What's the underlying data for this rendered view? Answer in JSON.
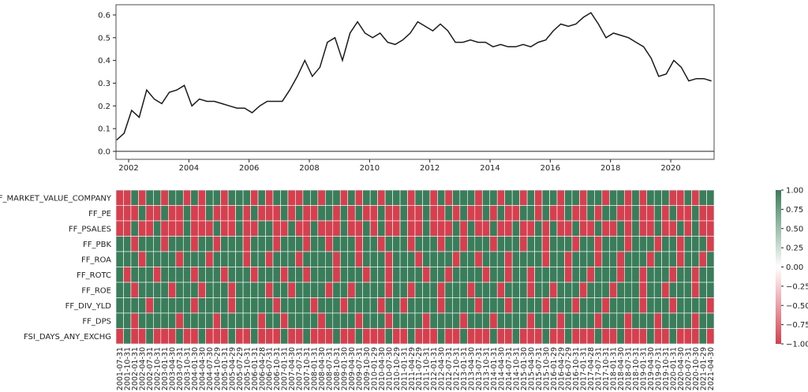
{
  "chart_data": [
    {
      "type": "line",
      "x": [
        2001.6,
        2001.85,
        2002.1,
        2002.35,
        2002.6,
        2002.85,
        2003.1,
        2003.35,
        2003.6,
        2003.85,
        2004.1,
        2004.35,
        2004.6,
        2004.85,
        2005.1,
        2005.35,
        2005.6,
        2005.85,
        2006.1,
        2006.35,
        2006.6,
        2006.85,
        2007.1,
        2007.35,
        2007.6,
        2007.85,
        2008.1,
        2008.35,
        2008.6,
        2008.85,
        2009.1,
        2009.35,
        2009.6,
        2009.85,
        2010.1,
        2010.35,
        2010.6,
        2010.85,
        2011.1,
        2011.35,
        2011.6,
        2011.85,
        2012.1,
        2012.35,
        2012.6,
        2012.85,
        2013.1,
        2013.35,
        2013.6,
        2013.85,
        2014.1,
        2014.35,
        2014.6,
        2014.85,
        2015.1,
        2015.35,
        2015.6,
        2015.85,
        2016.1,
        2016.35,
        2016.6,
        2016.85,
        2017.1,
        2017.35,
        2017.6,
        2017.85,
        2018.1,
        2018.35,
        2018.6,
        2018.85,
        2019.1,
        2019.35,
        2019.6,
        2019.85,
        2020.1,
        2020.35,
        2020.6,
        2020.85,
        2021.1,
        2021.35
      ],
      "values": [
        0.05,
        0.08,
        0.18,
        0.15,
        0.27,
        0.23,
        0.21,
        0.26,
        0.27,
        0.29,
        0.2,
        0.23,
        0.22,
        0.22,
        0.21,
        0.2,
        0.19,
        0.19,
        0.17,
        0.2,
        0.22,
        0.22,
        0.22,
        0.27,
        0.33,
        0.4,
        0.33,
        0.37,
        0.48,
        0.5,
        0.4,
        0.52,
        0.57,
        0.52,
        0.5,
        0.52,
        0.48,
        0.47,
        0.49,
        0.52,
        0.57,
        0.55,
        0.53,
        0.56,
        0.53,
        0.48,
        0.48,
        0.49,
        0.48,
        0.48,
        0.46,
        0.47,
        0.46,
        0.46,
        0.47,
        0.46,
        0.48,
        0.49,
        0.53,
        0.56,
        0.55,
        0.56,
        0.59,
        0.61,
        0.56,
        0.5,
        0.52,
        0.51,
        0.5,
        0.48,
        0.46,
        0.41,
        0.33,
        0.34,
        0.4,
        0.37,
        0.31,
        0.32,
        0.32,
        0.31
      ],
      "color": "#1a1a1a",
      "xlim": [
        2001.58,
        2021.44
      ],
      "xticks": [
        2002,
        2004,
        2006,
        2008,
        2010,
        2012,
        2014,
        2016,
        2018,
        2020
      ],
      "ylim": [
        -0.035,
        0.645
      ],
      "yticks": [
        {
          "value": 0,
          "label": "0.0"
        },
        0.1,
        0.2,
        0.3,
        0.4,
        0.5,
        0.6
      ]
    },
    {
      "type": "heatmap",
      "rows": [
        "FREF_MARKET_VALUE_COMPANY",
        "FF_PE",
        "FF_PSALES",
        "FF_PBK",
        "FF_ROA",
        "FF_ROTC",
        "FF_ROE",
        "FF_DIV_YLD",
        "FF_DPS",
        "FSI_DAYS_ANY_EXCHG"
      ],
      "categories": [
        "2001-07-31",
        "2001-10-31",
        "2002-01-31",
        "2002-04-30",
        "2002-07-31",
        "2002-10-31",
        "2003-01-31",
        "2003-04-30",
        "2003-07-31",
        "2003-10-31",
        "2004-01-30",
        "2004-04-30",
        "2004-07-30",
        "2004-10-29",
        "2005-01-31",
        "2005-04-29",
        "2005-07-29",
        "2005-10-31",
        "2006-01-31",
        "2006-04-28",
        "2006-07-31",
        "2006-10-31",
        "2007-01-31",
        "2007-04-30",
        "2007-07-31",
        "2007-10-31",
        "2008-01-31",
        "2008-04-30",
        "2008-07-31",
        "2008-10-31",
        "2009-01-30",
        "2009-04-30",
        "2009-07-31",
        "2009-10-30",
        "2010-01-29",
        "2010-04-30",
        "2010-07-30",
        "2010-10-29",
        "2011-01-31",
        "2011-04-29",
        "2011-07-29",
        "2011-10-31",
        "2012-01-31",
        "2012-04-30",
        "2012-07-31",
        "2012-10-31",
        "2013-01-31",
        "2013-04-30",
        "2013-07-31",
        "2013-10-31",
        "2014-01-31",
        "2014-04-30",
        "2014-07-31",
        "2014-10-31",
        "2015-01-30",
        "2015-04-30",
        "2015-07-31",
        "2015-10-30",
        "2016-01-29",
        "2016-04-29",
        "2016-07-29",
        "2016-10-31",
        "2017-01-31",
        "2017-04-28",
        "2017-07-31",
        "2017-10-31",
        "2018-01-31",
        "2018-04-30",
        "2018-07-31",
        "2018-10-31",
        "2019-01-31",
        "2019-04-30",
        "2019-07-31",
        "2019-10-31",
        "2020-01-31",
        "2020-04-30",
        "2020-07-31",
        "2020-10-30",
        "2021-01-29",
        "2021-04-30"
      ],
      "values": [
        [
          -1,
          -1,
          1,
          -1,
          1,
          1,
          -1,
          1,
          1,
          -1,
          1,
          -1,
          1,
          1,
          -1,
          1,
          1,
          1,
          -1,
          1,
          -1,
          1,
          1,
          -1,
          -1,
          1,
          1,
          -1,
          1,
          1,
          -1,
          1,
          -1,
          1,
          1,
          -1,
          1,
          1,
          1,
          -1,
          1,
          1,
          -1,
          1,
          -1,
          1,
          1,
          1,
          -1,
          1,
          1,
          -1,
          1,
          1,
          -1,
          1,
          -1,
          1,
          1,
          -1,
          1,
          1,
          -1,
          1,
          1,
          -1,
          1,
          1,
          -1,
          1,
          -1,
          1,
          1,
          1,
          -1,
          -1,
          1,
          -1,
          1,
          1
        ],
        [
          -1,
          -1,
          -1,
          1,
          -1,
          -1,
          1,
          -1,
          -1,
          1,
          -1,
          -1,
          1,
          -1,
          -1,
          -1,
          1,
          -1,
          1,
          -1,
          -1,
          -1,
          1,
          -1,
          1,
          -1,
          -1,
          1,
          1,
          -1,
          1,
          -1,
          1,
          -1,
          -1,
          1,
          -1,
          -1,
          1,
          -1,
          -1,
          1,
          -1,
          -1,
          1,
          -1,
          1,
          -1,
          -1,
          1,
          -1,
          1,
          -1,
          -1,
          1,
          1,
          -1,
          1,
          -1,
          -1,
          1,
          -1,
          -1,
          1,
          -1,
          1,
          1,
          -1,
          -1,
          1,
          -1,
          -1,
          1,
          -1,
          1,
          -1,
          -1,
          1,
          -1,
          -1
        ],
        [
          -1,
          -1,
          1,
          -1,
          -1,
          1,
          -1,
          -1,
          -1,
          1,
          -1,
          -1,
          -1,
          1,
          -1,
          -1,
          1,
          -1,
          -1,
          1,
          1,
          -1,
          -1,
          1,
          -1,
          -1,
          1,
          -1,
          -1,
          -1,
          1,
          -1,
          -1,
          1,
          -1,
          1,
          -1,
          -1,
          1,
          -1,
          -1,
          1,
          -1,
          -1,
          -1,
          1,
          -1,
          1,
          -1,
          -1,
          1,
          -1,
          -1,
          1,
          -1,
          -1,
          1,
          -1,
          1,
          -1,
          -1,
          1,
          -1,
          -1,
          1,
          -1,
          -1,
          1,
          -1,
          1,
          -1,
          -1,
          1,
          -1,
          -1,
          1,
          -1,
          1,
          -1,
          -1
        ],
        [
          1,
          1,
          -1,
          1,
          1,
          1,
          -1,
          1,
          1,
          1,
          -1,
          1,
          1,
          -1,
          1,
          1,
          1,
          -1,
          1,
          1,
          1,
          -1,
          1,
          1,
          1,
          -1,
          1,
          1,
          -1,
          1,
          1,
          1,
          -1,
          1,
          1,
          -1,
          1,
          1,
          1,
          -1,
          1,
          1,
          1,
          -1,
          1,
          1,
          -1,
          1,
          1,
          1,
          -1,
          1,
          1,
          1,
          -1,
          1,
          1,
          -1,
          1,
          1,
          1,
          -1,
          1,
          1,
          -1,
          1,
          1,
          1,
          -1,
          1,
          1,
          1,
          -1,
          1,
          1,
          -1,
          1,
          1,
          1,
          -1
        ],
        [
          1,
          1,
          1,
          -1,
          1,
          1,
          1,
          1,
          -1,
          1,
          1,
          1,
          -1,
          1,
          1,
          1,
          1,
          -1,
          1,
          1,
          -1,
          1,
          1,
          1,
          -1,
          1,
          1,
          1,
          1,
          -1,
          1,
          1,
          -1,
          1,
          1,
          1,
          -1,
          1,
          1,
          1,
          -1,
          1,
          1,
          1,
          1,
          -1,
          1,
          1,
          -1,
          1,
          1,
          1,
          -1,
          1,
          1,
          1,
          1,
          -1,
          1,
          1,
          -1,
          1,
          1,
          1,
          -1,
          1,
          1,
          -1,
          1,
          1,
          1,
          -1,
          1,
          1,
          1,
          -1,
          1,
          1,
          -1,
          1
        ],
        [
          1,
          -1,
          1,
          1,
          1,
          -1,
          1,
          1,
          1,
          1,
          -1,
          1,
          1,
          1,
          -1,
          1,
          1,
          1,
          -1,
          1,
          1,
          1,
          -1,
          1,
          1,
          -1,
          1,
          1,
          1,
          -1,
          1,
          1,
          1,
          -1,
          1,
          1,
          -1,
          1,
          1,
          1,
          1,
          -1,
          1,
          1,
          -1,
          1,
          1,
          1,
          1,
          -1,
          1,
          1,
          -1,
          1,
          1,
          -1,
          1,
          1,
          1,
          1,
          -1,
          1,
          1,
          -1,
          1,
          1,
          1,
          -1,
          1,
          1,
          -1,
          1,
          1,
          1,
          -1,
          1,
          1,
          -1,
          1,
          1
        ],
        [
          1,
          1,
          -1,
          1,
          1,
          1,
          1,
          -1,
          1,
          1,
          1,
          -1,
          1,
          1,
          1,
          -1,
          1,
          1,
          1,
          1,
          -1,
          1,
          1,
          -1,
          1,
          1,
          1,
          1,
          -1,
          1,
          1,
          -1,
          1,
          1,
          1,
          1,
          -1,
          1,
          1,
          -1,
          1,
          1,
          1,
          -1,
          1,
          1,
          1,
          -1,
          1,
          1,
          1,
          -1,
          1,
          1,
          1,
          -1,
          1,
          1,
          -1,
          1,
          1,
          1,
          -1,
          1,
          1,
          1,
          -1,
          1,
          1,
          1,
          -1,
          1,
          1,
          -1,
          1,
          1,
          1,
          -1,
          1,
          1
        ],
        [
          1,
          1,
          1,
          1,
          -1,
          1,
          1,
          1,
          1,
          1,
          -1,
          1,
          1,
          1,
          1,
          -1,
          1,
          1,
          1,
          1,
          1,
          -1,
          1,
          1,
          1,
          1,
          -1,
          1,
          1,
          1,
          -1,
          1,
          1,
          1,
          1,
          -1,
          1,
          1,
          -1,
          1,
          1,
          1,
          1,
          -1,
          1,
          1,
          1,
          1,
          -1,
          1,
          1,
          1,
          -1,
          1,
          1,
          1,
          1,
          -1,
          1,
          1,
          1,
          -1,
          1,
          1,
          1,
          -1,
          1,
          1,
          1,
          1,
          -1,
          1,
          1,
          1,
          -1,
          1,
          1,
          1,
          1,
          -1
        ],
        [
          1,
          1,
          -1,
          1,
          1,
          1,
          1,
          1,
          -1,
          1,
          1,
          1,
          1,
          -1,
          1,
          1,
          1,
          1,
          1,
          -1,
          1,
          1,
          -1,
          1,
          1,
          1,
          1,
          -1,
          1,
          1,
          1,
          1,
          -1,
          1,
          1,
          1,
          -1,
          1,
          1,
          1,
          1,
          -1,
          1,
          1,
          1,
          1,
          -1,
          1,
          1,
          1,
          -1,
          1,
          1,
          1,
          1,
          -1,
          1,
          1,
          1,
          -1,
          1,
          1,
          1,
          1,
          -1,
          1,
          1,
          1,
          -1,
          1,
          1,
          1,
          -1,
          1,
          1,
          1,
          1,
          -1,
          1,
          1
        ],
        [
          -1,
          1,
          -1,
          -1,
          1,
          -1,
          -1,
          -1,
          1,
          -1,
          -1,
          1,
          -1,
          -1,
          -1,
          1,
          -1,
          -1,
          1,
          -1,
          -1,
          -1,
          1,
          -1,
          -1,
          1,
          -1,
          -1,
          -1,
          1,
          -1,
          -1,
          1,
          -1,
          -1,
          -1,
          1,
          -1,
          -1,
          1,
          -1,
          -1,
          -1,
          1,
          -1,
          -1,
          1,
          -1,
          -1,
          -1,
          1,
          -1,
          -1,
          1,
          -1,
          -1,
          -1,
          1,
          -1,
          -1,
          1,
          -1,
          -1,
          -1,
          1,
          -1,
          -1,
          1,
          -1,
          -1,
          -1,
          1,
          -1,
          -1,
          1,
          -1,
          -1,
          -1,
          1,
          -1
        ]
      ],
      "colors": [
        "#d6404e",
        "#ffffff",
        "#3a7d5a"
      ],
      "zlim": [
        -1,
        1
      ],
      "zticks": [
        {
          "value": -1,
          "label": "−1.00"
        },
        {
          "value": -0.75,
          "label": "−0.75"
        },
        {
          "value": -0.5,
          "label": "−0.50"
        },
        {
          "value": -0.25,
          "label": "−0.25"
        },
        {
          "value": 0,
          "label": "0.00"
        },
        {
          "value": 0.25,
          "label": "0.25"
        },
        {
          "value": 0.5,
          "label": "0.50"
        },
        {
          "value": 0.75,
          "label": "0.75"
        },
        {
          "value": 1,
          "label": "1.00"
        }
      ]
    }
  ]
}
